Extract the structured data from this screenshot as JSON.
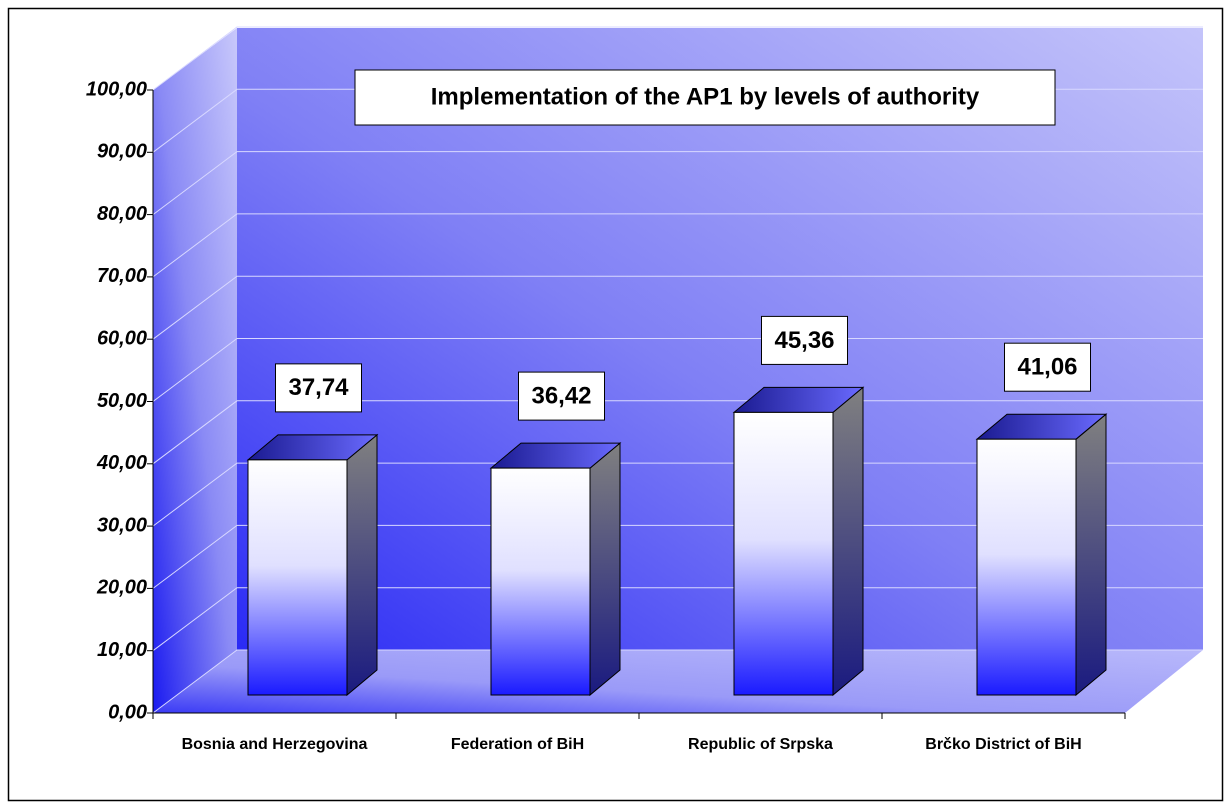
{
  "chart_data": {
    "type": "bar3d",
    "title": "Implementation of the AP1 by levels of authority",
    "categories": [
      "Bosnia and Herzegovina",
      "Federation of BiH",
      "Republic of Srpska",
      "Brčko District of BiH"
    ],
    "values": [
      37.74,
      36.42,
      45.36,
      41.06
    ],
    "value_labels": [
      "37,74",
      "36,42",
      "45,36",
      "41,06"
    ],
    "ylim": [
      0,
      100
    ],
    "yticks": [
      {
        "value": 0,
        "label": "0,00"
      },
      {
        "value": 10,
        "label": "10,00"
      },
      {
        "value": 20,
        "label": "20,00"
      },
      {
        "value": 30,
        "label": "30,00"
      },
      {
        "value": 40,
        "label": "40,00"
      },
      {
        "value": 50,
        "label": "50,00"
      },
      {
        "value": 60,
        "label": "60,00"
      },
      {
        "value": 70,
        "label": "70,00"
      },
      {
        "value": 80,
        "label": "80,00"
      },
      {
        "value": 90,
        "label": "90,00"
      },
      {
        "value": 100,
        "label": "100,00"
      }
    ],
    "grid": true
  }
}
